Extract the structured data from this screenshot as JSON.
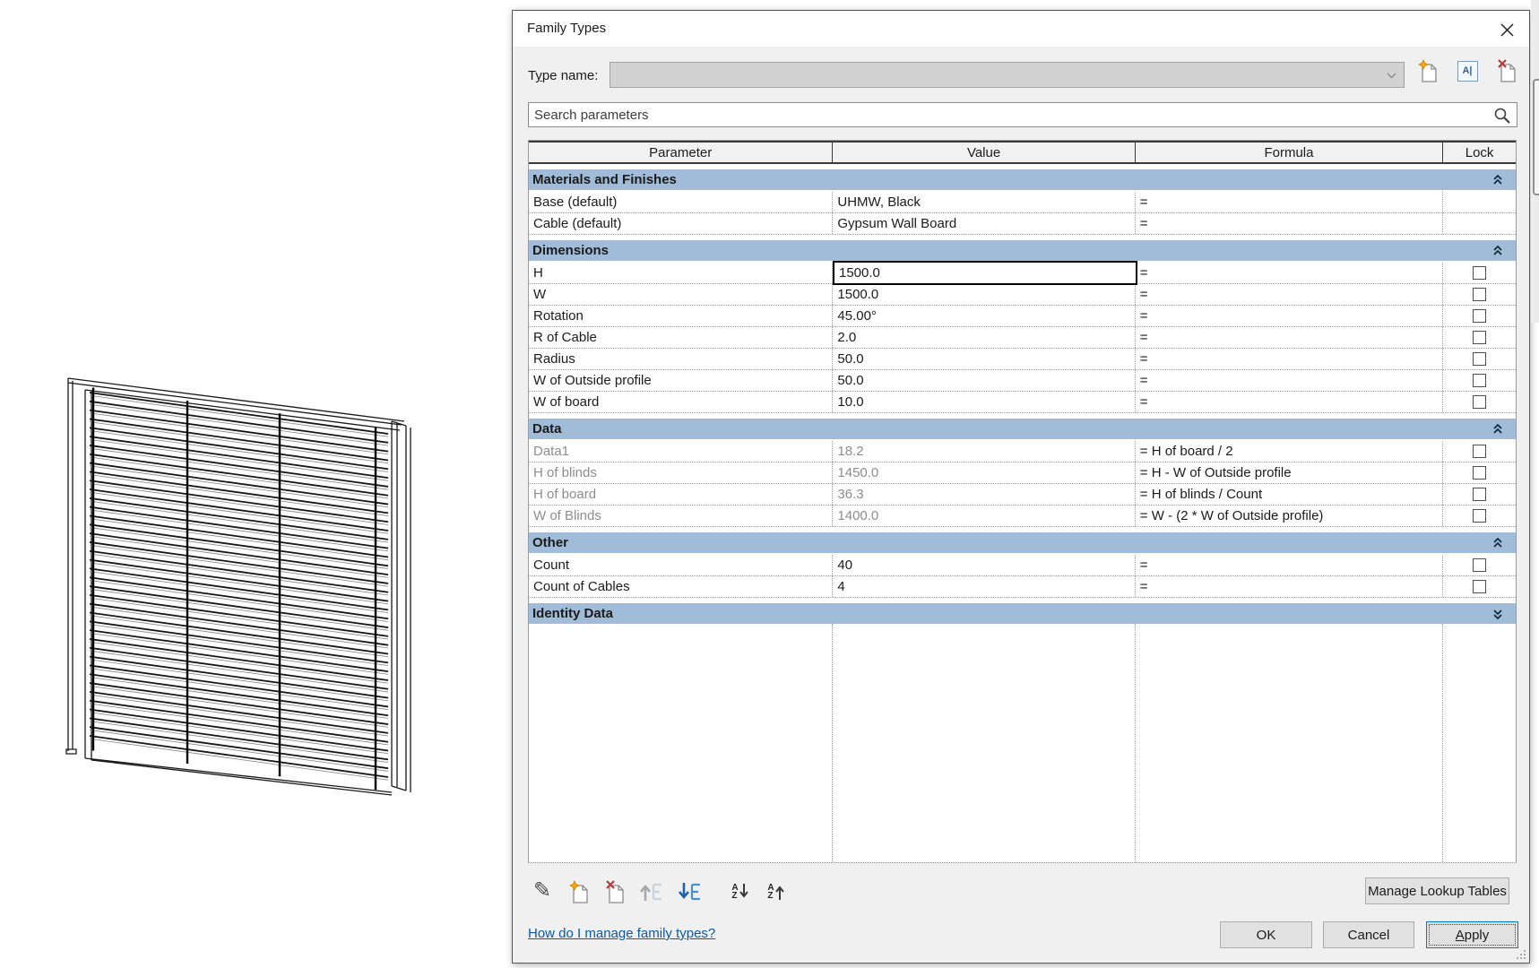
{
  "dialog": {
    "title": "Family Types",
    "type_name": {
      "label": "Type name:",
      "accel": 1,
      "value": ""
    },
    "type_icons": [
      {
        "name": "new-type-icon"
      },
      {
        "name": "rename-type-icon",
        "glyph": "A|"
      },
      {
        "name": "delete-type-icon"
      }
    ],
    "search": {
      "placeholder": "Search parameters"
    },
    "table": {
      "columns": [
        "Parameter",
        "Value",
        "Formula",
        "Lock"
      ],
      "sections": [
        {
          "name": "Materials and Finishes",
          "collapsed": false,
          "rows": [
            {
              "parameter": "Base (default)",
              "value": "UHMW, Black",
              "formula": "=",
              "lock": null
            },
            {
              "parameter": "Cable (default)",
              "value": "Gypsum Wall Board",
              "formula": "=",
              "lock": null
            }
          ]
        },
        {
          "name": "Dimensions",
          "collapsed": false,
          "rows": [
            {
              "parameter": "H",
              "value": "1500.0",
              "formula": "=",
              "lock": false,
              "editing": true
            },
            {
              "parameter": "W",
              "value": "1500.0",
              "formula": "=",
              "lock": false
            },
            {
              "parameter": "Rotation",
              "value": "45.00°",
              "formula": "=",
              "lock": false
            },
            {
              "parameter": "R of Cable",
              "value": "2.0",
              "formula": "=",
              "lock": false
            },
            {
              "parameter": "Radius",
              "value": "50.0",
              "formula": "=",
              "lock": false
            },
            {
              "parameter": "W of Outside profile",
              "value": "50.0",
              "formula": "=",
              "lock": false
            },
            {
              "parameter": "W of board",
              "value": "10.0",
              "formula": "=",
              "lock": false
            }
          ]
        },
        {
          "name": "Data",
          "collapsed": false,
          "rows": [
            {
              "parameter": "Data1",
              "value": "18.2",
              "formula": "= H of board / 2",
              "lock": false,
              "disabled": true
            },
            {
              "parameter": "H of blinds",
              "value": "1450.0",
              "formula": "= H - W of Outside profile",
              "lock": false,
              "disabled": true
            },
            {
              "parameter": "H of board",
              "value": "36.3",
              "formula": "= H of blinds / Count",
              "lock": false,
              "disabled": true
            },
            {
              "parameter": "W of Blinds",
              "value": "1400.0",
              "formula": "= W - (2 * W of Outside profile)",
              "lock": false,
              "disabled": true
            }
          ]
        },
        {
          "name": "Other",
          "collapsed": false,
          "rows": [
            {
              "parameter": "Count",
              "value": "40",
              "formula": "=",
              "lock": false
            },
            {
              "parameter": "Count of Cables",
              "value": "4",
              "formula": "=",
              "lock": false
            }
          ]
        },
        {
          "name": "Identity Data",
          "collapsed": true,
          "rows": []
        }
      ]
    },
    "toolbar": [
      {
        "name": "edit-parameter-icon"
      },
      {
        "name": "new-parameter-icon"
      },
      {
        "name": "delete-parameter-icon"
      },
      {
        "name": "move-parameter-up-icon"
      },
      {
        "name": "move-parameter-down-icon"
      },
      {
        "name": "sort-ascending-icon"
      },
      {
        "name": "sort-descending-icon"
      }
    ],
    "help_link": "How do I manage family types?",
    "buttons": {
      "manage_lookup": {
        "label": "Manage Lookup Tables",
        "accel": 4
      },
      "ok": {
        "label": "OK"
      },
      "cancel": {
        "label": "Cancel"
      },
      "apply": {
        "label": "Apply",
        "accel": 0
      }
    }
  },
  "preview": {
    "description": "3D wireframe preview of blinds family",
    "slat_count": 40,
    "cable_count": 4
  },
  "colors": {
    "section_band": "#a0bcd8",
    "dialog_bg": "#f0f0f0",
    "link": "#0a58a8",
    "focus": "#0078d7",
    "disabled_text": "#8d8d8d"
  }
}
